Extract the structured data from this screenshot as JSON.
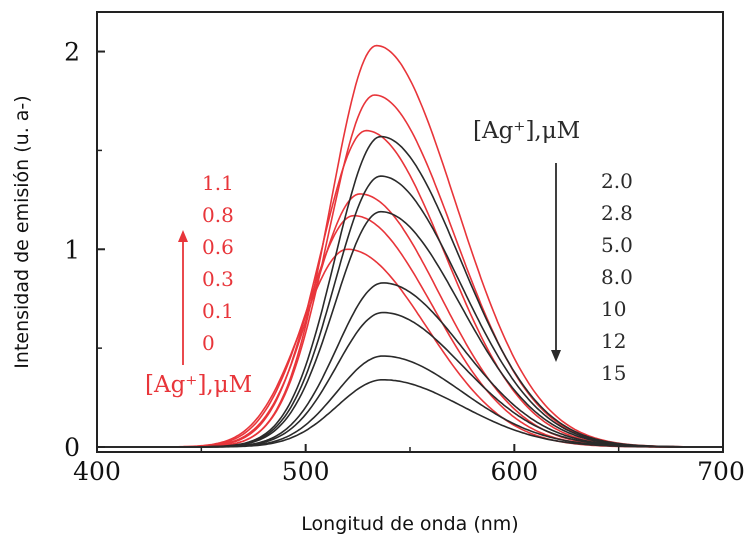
{
  "chart_data": {
    "type": "line",
    "title": "",
    "xlabel": "Longitud de onda (nm)",
    "ylabel": "Intensidad de emisión (u. a-)",
    "xlim": [
      400,
      700
    ],
    "ylim": [
      0,
      2.2
    ],
    "x_ticks": [
      "400",
      "500",
      "600",
      "700"
    ],
    "y_ticks": [
      "0",
      "1",
      "2"
    ],
    "grid": false,
    "colors": {
      "red": "#e8353a",
      "black": "#2a2a2a"
    },
    "legends": [
      {
        "title": "[Ag⁺],μM",
        "color": "#e8353a",
        "arrow": "up",
        "items": [
          "1.1",
          "0.8",
          "0.6",
          "0.3",
          "0.1",
          "0"
        ]
      },
      {
        "title": "[Ag⁺],μM",
        "color": "#2a2a2a",
        "arrow": "down",
        "items": [
          "2.0",
          "2.8",
          "5.0",
          "8.0",
          "10",
          "12",
          "15"
        ]
      }
    ],
    "series": [
      {
        "color": "red",
        "peak_x": 534,
        "peak_y": 2.03
      },
      {
        "color": "red",
        "peak_x": 533,
        "peak_y": 1.78
      },
      {
        "color": "red",
        "peak_x": 529,
        "peak_y": 1.6
      },
      {
        "color": "red",
        "peak_x": 526,
        "peak_y": 1.28
      },
      {
        "color": "red",
        "peak_x": 523,
        "peak_y": 1.17
      },
      {
        "color": "red",
        "peak_x": 520,
        "peak_y": 1.0
      },
      {
        "color": "black",
        "peak_x": 536,
        "peak_y": 1.57
      },
      {
        "color": "black",
        "peak_x": 536,
        "peak_y": 1.37
      },
      {
        "color": "black",
        "peak_x": 536,
        "peak_y": 1.19
      },
      {
        "color": "black",
        "peak_x": 537,
        "peak_y": 0.83
      },
      {
        "color": "black",
        "peak_x": 537,
        "peak_y": 0.68
      },
      {
        "color": "black",
        "peak_x": 537,
        "peak_y": 0.46
      },
      {
        "color": "black",
        "peak_x": 537,
        "peak_y": 0.34
      }
    ]
  }
}
